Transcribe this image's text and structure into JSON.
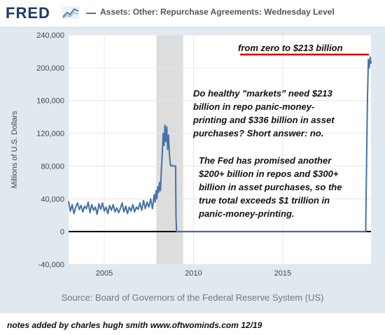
{
  "header": {
    "logo_text": "FRED",
    "series_title": "Assets: Other: Repurchase Agreements: Wednesday Level",
    "icon": "line-chart-icon"
  },
  "source_text": "Source: Board of Governors of the Federal Reserve System (US)",
  "footer_note": "notes added by charles hugh smith    www.oftwominds.com  12/19",
  "annotations": {
    "headline": "from zero to $213 billion",
    "para1": [
      "Do healthy \"markets\" need $213",
      "billion in repo panic-money-",
      "printing and $336 billion in asset",
      "purchases? Short answer: no."
    ],
    "para2": [
      "The Fed has promised another",
      "$200+ billion in repos and $300+",
      "billion in asset purchases, so the",
      "true total exceeds $1 trillion in",
      "panic-money-printing."
    ]
  },
  "colors": {
    "series": "#4572a7",
    "recession": "#dddddd",
    "plot_bg": "#ffffff",
    "frame_bg": "#e1e9f0",
    "highlight_line": "#cc0000"
  },
  "chart_data": {
    "type": "line",
    "title": "Assets: Other: Repurchase Agreements: Wednesday Level",
    "ylabel": "Millions of U.S. Dollars",
    "xlabel": "",
    "xlim": [
      2003.0,
      2019.95
    ],
    "ylim": [
      -40000,
      240000
    ],
    "yticks": [
      -40000,
      0,
      40000,
      80000,
      120000,
      160000,
      200000,
      240000
    ],
    "ytick_labels": [
      "-40,000",
      "0",
      "40,000",
      "80,000",
      "120,000",
      "160,000",
      "200,000",
      "240,000"
    ],
    "xticks": [
      2005,
      2010,
      2015
    ],
    "xtick_labels": [
      "2005",
      "2010",
      "2015"
    ],
    "grid": true,
    "recession_shading": [
      [
        2007.92,
        2009.42
      ]
    ],
    "series": [
      {
        "values": [
          [
            2003.0,
            37000
          ],
          [
            2003.1,
            25000
          ],
          [
            2003.2,
            33000
          ],
          [
            2003.3,
            22000
          ],
          [
            2003.4,
            30000
          ],
          [
            2003.5,
            35000
          ],
          [
            2003.6,
            27000
          ],
          [
            2003.7,
            32000
          ],
          [
            2003.8,
            24000
          ],
          [
            2003.9,
            31000
          ],
          [
            2004.0,
            28000
          ],
          [
            2004.1,
            36000
          ],
          [
            2004.2,
            23000
          ],
          [
            2004.3,
            33000
          ],
          [
            2004.4,
            26000
          ],
          [
            2004.5,
            30000
          ],
          [
            2004.6,
            21000
          ],
          [
            2004.7,
            34000
          ],
          [
            2004.8,
            27000
          ],
          [
            2004.9,
            35000
          ],
          [
            2005.0,
            25000
          ],
          [
            2005.1,
            30000
          ],
          [
            2005.2,
            22000
          ],
          [
            2005.3,
            32000
          ],
          [
            2005.4,
            26000
          ],
          [
            2005.5,
            33000
          ],
          [
            2005.6,
            24000
          ],
          [
            2005.7,
            29000
          ],
          [
            2005.8,
            23000
          ],
          [
            2005.9,
            28000
          ],
          [
            2006.0,
            35000
          ],
          [
            2006.1,
            24000
          ],
          [
            2006.2,
            31000
          ],
          [
            2006.3,
            22000
          ],
          [
            2006.4,
            30000
          ],
          [
            2006.5,
            25000
          ],
          [
            2006.6,
            33000
          ],
          [
            2006.7,
            24000
          ],
          [
            2006.8,
            30000
          ],
          [
            2006.9,
            27000
          ],
          [
            2007.0,
            35000
          ],
          [
            2007.1,
            26000
          ],
          [
            2007.2,
            38000
          ],
          [
            2007.3,
            28000
          ],
          [
            2007.4,
            36000
          ],
          [
            2007.5,
            30000
          ],
          [
            2007.6,
            40000
          ],
          [
            2007.7,
            28000
          ],
          [
            2007.8,
            45000
          ],
          [
            2007.85,
            36000
          ],
          [
            2007.9,
            50000
          ],
          [
            2007.95,
            40000
          ],
          [
            2008.0,
            55000
          ],
          [
            2008.05,
            48000
          ],
          [
            2008.1,
            60000
          ],
          [
            2008.15,
            50000
          ],
          [
            2008.2,
            75000
          ],
          [
            2008.25,
            95000
          ],
          [
            2008.3,
            120000
          ],
          [
            2008.35,
            105000
          ],
          [
            2008.4,
            130000
          ],
          [
            2008.45,
            110000
          ],
          [
            2008.5,
            128000
          ],
          [
            2008.55,
            100000
          ],
          [
            2008.6,
            118000
          ],
          [
            2008.65,
            95000
          ],
          [
            2008.7,
            82000
          ],
          [
            2008.75,
            80000
          ],
          [
            2008.8,
            81000
          ],
          [
            2008.85,
            80000
          ],
          [
            2008.9,
            80000
          ],
          [
            2008.95,
            80000
          ],
          [
            2009.0,
            80000
          ],
          [
            2009.02,
            20000
          ],
          [
            2009.05,
            0
          ],
          [
            2019.65,
            0
          ],
          [
            2019.7,
            80000
          ],
          [
            2019.75,
            160000
          ],
          [
            2019.8,
            210000
          ],
          [
            2019.85,
            200000
          ],
          [
            2019.9,
            213000
          ],
          [
            2019.95,
            205000
          ]
        ]
      }
    ]
  }
}
